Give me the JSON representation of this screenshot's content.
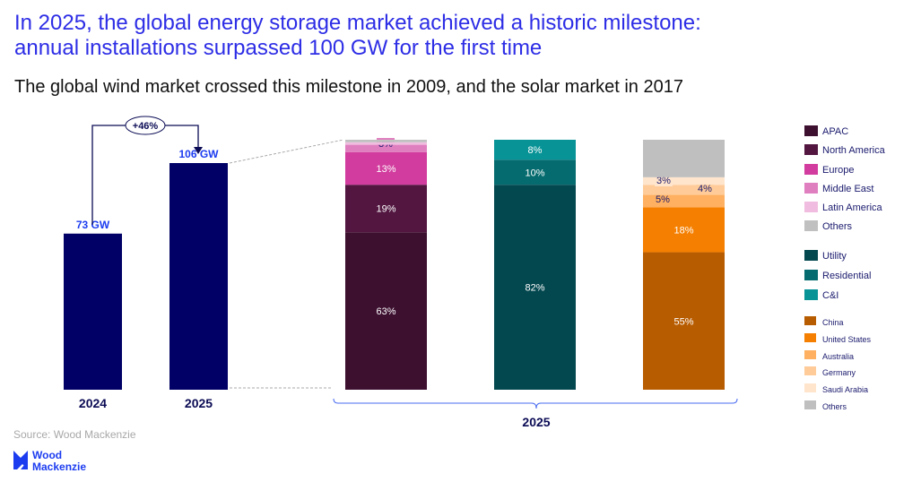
{
  "title_line1": "In 2025, the global energy storage market achieved a historic milestone:",
  "title_line2": "annual installations surpassed 100 GW for the first time",
  "subtitle": "The global wind market crossed this milestone in 2009, and the solar market in 2017",
  "source": "Source: Wood Mackenzie",
  "logo_text": [
    "Wood",
    "Mackenzie"
  ],
  "chart_data": [
    {
      "type": "bar",
      "categories": [
        "2024",
        "2025"
      ],
      "values": [
        73,
        106
      ],
      "unit": "GW",
      "data_labels": [
        "73 GW",
        "106 GW"
      ],
      "growth_label": "+46%",
      "color": "#000066"
    },
    {
      "type": "stacked-bar",
      "category_label": "2025",
      "bars": [
        {
          "segments": [
            {
              "name": "APAC",
              "value": 63,
              "label": "63%",
              "color": "#3d1030"
            },
            {
              "name": "North America",
              "value": 19,
              "label": "19%",
              "color": "#521640"
            },
            {
              "name": "Europe",
              "value": 13,
              "label": "13%",
              "color": "#d23c9e"
            },
            {
              "name": "Middle East",
              "value": 3,
              "label": "3%",
              "color": "#e07fc0"
            },
            {
              "name": "Latin America",
              "value": 1,
              "label": "",
              "color": "#f0bde0"
            },
            {
              "name": "Others",
              "value": 1,
              "label": "",
              "color": "#c0c0c0"
            }
          ]
        },
        {
          "segments": [
            {
              "name": "Utility",
              "value": 82,
              "label": "82%",
              "color": "#03474f"
            },
            {
              "name": "Residential",
              "value": 10,
              "label": "10%",
              "color": "#056b6e"
            },
            {
              "name": "C&I",
              "value": 8,
              "label": "8%",
              "color": "#089397"
            }
          ]
        },
        {
          "segments": [
            {
              "name": "China",
              "value": 55,
              "label": "55%",
              "color": "#b85c00"
            },
            {
              "name": "United States",
              "value": 18,
              "label": "18%",
              "color": "#f57f00"
            },
            {
              "name": "Australia",
              "value": 5,
              "label": "5%",
              "color": "#ffb060"
            },
            {
              "name": "Germany",
              "value": 4,
              "label": "4%",
              "color": "#ffcc99"
            },
            {
              "name": "Saudi Arabia",
              "value": 3,
              "label": "3%",
              "color": "#ffe5cc"
            },
            {
              "name": "Others",
              "value": 15,
              "label": "",
              "color": "#bfbfbf"
            }
          ]
        }
      ],
      "legend_position": "right"
    }
  ]
}
